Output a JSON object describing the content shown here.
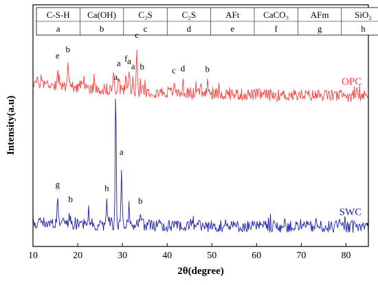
{
  "chart_data": {
    "type": "line",
    "xlabel": "2θ(degree)",
    "ylabel": "Intensity(a.u)",
    "xlim": [
      10,
      85
    ],
    "xticks": [
      "10",
      "20",
      "30",
      "40",
      "50",
      "60",
      "70",
      "80"
    ],
    "grid": false,
    "legend_table": [
      {
        "phase": "C-S-H",
        "letter": "a"
      },
      {
        "phase": "Ca(OH)",
        "letter": "b"
      },
      {
        "phase": "C₃S",
        "letter": "c"
      },
      {
        "phase": "C₂S",
        "letter": "d"
      },
      {
        "phase": "AFt",
        "letter": "e"
      },
      {
        "phase": "CaCO₃",
        "letter": "f"
      },
      {
        "phase": "AFm",
        "letter": "g"
      },
      {
        "phase": "SiO₂",
        "letter": "h"
      }
    ],
    "series": [
      {
        "name": "OPC",
        "color": "#ff3b3b",
        "baseline": 0.62,
        "noise": 0.025,
        "decay": 0.06,
        "peaks": [
          {
            "x": 15.5,
            "h": 0.07,
            "label": "e"
          },
          {
            "x": 17.8,
            "h": 0.1,
            "label": "b"
          },
          {
            "x": 28.0,
            "h": 0.07
          },
          {
            "x": 29.2,
            "h": 0.06,
            "label": "a"
          },
          {
            "x": 30.8,
            "h": 0.08,
            "label": "f"
          },
          {
            "x": 31.5,
            "h": 0.07,
            "label": "a"
          },
          {
            "x": 32.4,
            "h": 0.05,
            "label": "a"
          },
          {
            "x": 33.2,
            "h": 0.18,
            "label": "c"
          },
          {
            "x": 34.4,
            "h": 0.05,
            "label": "b"
          },
          {
            "x": 41.5,
            "h": 0.04,
            "label": "c"
          },
          {
            "x": 43.5,
            "h": 0.05,
            "label": "d"
          },
          {
            "x": 47.5,
            "h": 0.05
          },
          {
            "x": 49.0,
            "h": 0.05,
            "label": "b"
          }
        ]
      },
      {
        "name": "SWC",
        "color": "#1c1cb0",
        "baseline": 0.08,
        "noise": 0.025,
        "decay": 0.02,
        "peaks": [
          {
            "x": 15.5,
            "h": 0.11,
            "label": "g"
          },
          {
            "x": 18.4,
            "h": 0.05,
            "label": "b"
          },
          {
            "x": 22.4,
            "h": 0.06
          },
          {
            "x": 26.5,
            "h": 0.1,
            "label": "h"
          },
          {
            "x": 28.5,
            "h": 0.56,
            "label": "a"
          },
          {
            "x": 29.8,
            "h": 0.25,
            "label": "a"
          },
          {
            "x": 31.5,
            "h": 0.09
          },
          {
            "x": 34.0,
            "h": 0.05,
            "label": "b"
          },
          {
            "x": 38.5,
            "h": 0.04
          },
          {
            "x": 45.8,
            "h": 0.04
          }
        ]
      }
    ]
  }
}
